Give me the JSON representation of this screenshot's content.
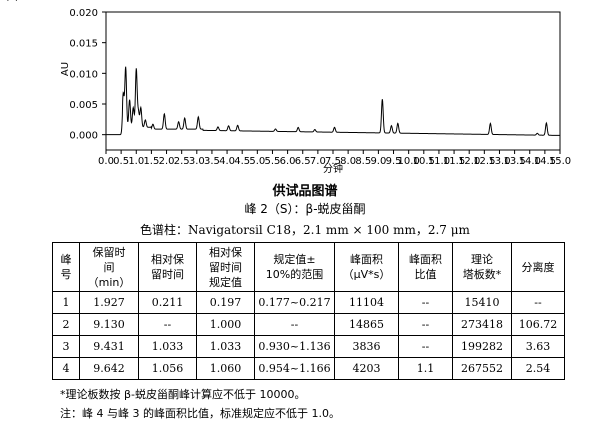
{
  "chart_data": {
    "type": "line",
    "xlabel": "分钟",
    "ylabel": "AU",
    "xlim": [
      0.0,
      15.0
    ],
    "ylim": [
      -0.0025,
      0.02
    ],
    "x_ticks": [
      "0.0",
      "0.5",
      "1.0",
      "1.5",
      "2.0",
      "2.5",
      "3.0",
      "3.5",
      "4.0",
      "4.5",
      "5.0",
      "5.5",
      "6.0",
      "6.5",
      "7.0",
      "7.5",
      "8.0",
      "8.5",
      "9.0",
      "9.5",
      "10.0",
      "10.5",
      "11.0",
      "11.5",
      "12.0",
      "12.5",
      "13.0",
      "13.5",
      "14.0",
      "14.5",
      "15.0"
    ],
    "y_ticks": [
      "0.000",
      "0.005",
      "0.010",
      "0.015",
      "0.020"
    ],
    "grid": false,
    "peaks": [
      {
        "label": "1",
        "rt": 1.927,
        "height": 0.0025
      },
      {
        "label": "2(S)",
        "rt": 9.13,
        "height": 0.0055
      },
      {
        "label": "3",
        "rt": 9.431,
        "height": 0.0012
      },
      {
        "label": "4",
        "rt": 9.642,
        "height": 0.0016
      }
    ],
    "other_peaks": [
      {
        "rt": 0.57,
        "height": 0.0055
      },
      {
        "rt": 0.65,
        "height": 0.0098
      },
      {
        "rt": 0.78,
        "height": 0.0045
      },
      {
        "rt": 0.9,
        "height": 0.0032
      },
      {
        "rt": 1.0,
        "height": 0.0095
      },
      {
        "rt": 1.07,
        "height": 0.0025
      },
      {
        "rt": 1.15,
        "height": 0.0032
      },
      {
        "rt": 1.3,
        "height": 0.0012
      },
      {
        "rt": 1.55,
        "height": 0.0008
      },
      {
        "rt": 2.4,
        "height": 0.0012
      },
      {
        "rt": 2.6,
        "height": 0.0018
      },
      {
        "rt": 3.05,
        "height": 0.002
      },
      {
        "rt": 3.7,
        "height": 0.0006
      },
      {
        "rt": 4.05,
        "height": 0.0008
      },
      {
        "rt": 4.35,
        "height": 0.0009
      },
      {
        "rt": 5.6,
        "height": 0.0004
      },
      {
        "rt": 6.35,
        "height": 0.0007
      },
      {
        "rt": 6.9,
        "height": 0.0004
      },
      {
        "rt": 7.55,
        "height": 0.0008
      },
      {
        "rt": 12.7,
        "height": 0.0018
      },
      {
        "rt": 14.25,
        "height": 0.0003
      },
      {
        "rt": 14.55,
        "height": 0.002
      }
    ]
  },
  "figure_title": "供试品图谱",
  "peak_name": "峰 2（S）：β-蜕皮甾酮",
  "column_info": "色谱柱：Navigatorsil C18，2.1 mm × 100 mm，2.7 μm",
  "table": {
    "headers": [
      "峰号",
      "保留时间（min）",
      "相对保留时间",
      "相对保留时间规定值",
      "规定值±10%的范围",
      "峰面积（μV*s）",
      "峰面积比值",
      "理论塔板数*",
      "分离度"
    ],
    "header_lines": [
      [
        "峰",
        "号"
      ],
      [
        "保留时",
        "间",
        "（min）"
      ],
      [
        "相对保",
        "留时间"
      ],
      [
        "相对保",
        "留时间",
        "规定值"
      ],
      [
        "规定值±",
        "10%的范围"
      ],
      [
        "峰面积",
        "（μV*s）"
      ],
      [
        "峰面积",
        "比值"
      ],
      [
        "理论",
        "塔板数*"
      ],
      [
        "分离度"
      ]
    ],
    "rows": [
      [
        "1",
        "1.927",
        "0.211",
        "0.197",
        "0.177~0.217",
        "11104",
        "--",
        "15410",
        "--"
      ],
      [
        "2",
        "9.130",
        "--",
        "1.000",
        "--",
        "14865",
        "--",
        "273418",
        "106.72"
      ],
      [
        "3",
        "9.431",
        "1.033",
        "1.033",
        "0.930~1.136",
        "3836",
        "--",
        "199282",
        "3.63"
      ],
      [
        "4",
        "9.642",
        "1.056",
        "1.060",
        "0.954~1.166",
        "4203",
        "1.1",
        "267552",
        "2.54"
      ]
    ]
  },
  "notes": [
    "*理论板数按 β-蜕皮甾酮峰计算应不低于 10000。",
    "注：峰 4 与峰 3 的峰面积比值，标准规定应不低于 1.0。"
  ]
}
